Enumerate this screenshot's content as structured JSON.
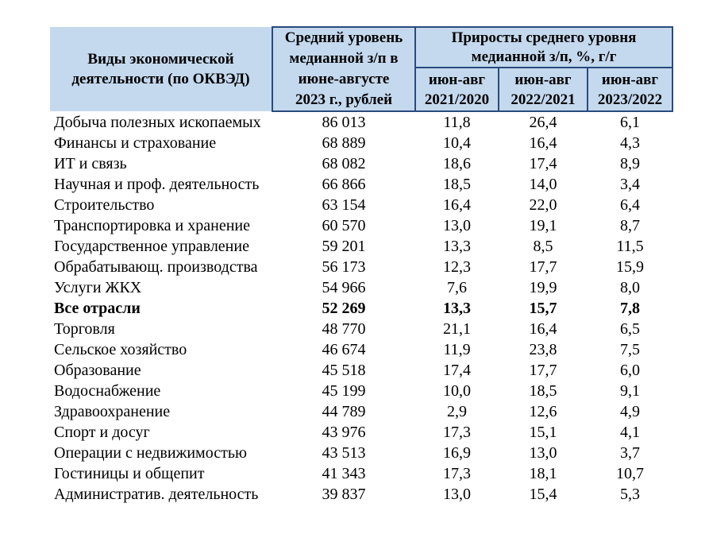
{
  "colors": {
    "header_fill": "#C4D9EE",
    "header_border": "#2A4A7C",
    "text": "#000000"
  },
  "table": {
    "header": {
      "activity": "Виды экономической деятельности (по ОКВЭД)",
      "median_salary": "Средний уровень медианной з/п в июне-августе 2023 г., рублей",
      "growth_group": "Приросты среднего уровня медианной з/п, %, г/г",
      "growth_cols": [
        "июн-авг 2021/2020",
        "июн-авг 2022/2021",
        "июн-авг 2023/2022"
      ]
    },
    "rows": [
      {
        "activity": "Добыча полезных ископаемых",
        "salary": "86 013",
        "g_2021_2020": "11,8",
        "g_2022_2021": "26,4",
        "g_2023_2022": "6,1",
        "bold": false
      },
      {
        "activity": "Финансы и страхование",
        "salary": "68 889",
        "g_2021_2020": "10,4",
        "g_2022_2021": "16,4",
        "g_2023_2022": "4,3",
        "bold": false
      },
      {
        "activity": "ИТ и связь",
        "salary": "68 082",
        "g_2021_2020": "18,6",
        "g_2022_2021": "17,4",
        "g_2023_2022": "8,9",
        "bold": false
      },
      {
        "activity": "Научная и проф. деятельность",
        "salary": "66 866",
        "g_2021_2020": "18,5",
        "g_2022_2021": "14,0",
        "g_2023_2022": "3,4",
        "bold": false
      },
      {
        "activity": "Строительство",
        "salary": "63 154",
        "g_2021_2020": "16,4",
        "g_2022_2021": "22,0",
        "g_2023_2022": "6,4",
        "bold": false
      },
      {
        "activity": "Транспортировка и хранение",
        "salary": "60 570",
        "g_2021_2020": "13,0",
        "g_2022_2021": "19,1",
        "g_2023_2022": "8,7",
        "bold": false
      },
      {
        "activity": "Государственное управление",
        "salary": "59 201",
        "g_2021_2020": "13,3",
        "g_2022_2021": "8,5",
        "g_2023_2022": "11,5",
        "bold": false
      },
      {
        "activity": "Обрабатывающ. производства",
        "salary": "56 173",
        "g_2021_2020": "12,3",
        "g_2022_2021": "17,7",
        "g_2023_2022": "15,9",
        "bold": false
      },
      {
        "activity": "Услуги ЖКХ",
        "salary": "54 966",
        "g_2021_2020": "7,6",
        "g_2022_2021": "19,9",
        "g_2023_2022": "8,0",
        "bold": false
      },
      {
        "activity": "Все отрасли",
        "salary": "52 269",
        "g_2021_2020": "13,3",
        "g_2022_2021": "15,7",
        "g_2023_2022": "7,8",
        "bold": true
      },
      {
        "activity": "Торговля",
        "salary": "48 770",
        "g_2021_2020": "21,1",
        "g_2022_2021": "16,4",
        "g_2023_2022": "6,5",
        "bold": false
      },
      {
        "activity": "Сельское хозяйство",
        "salary": "46 674",
        "g_2021_2020": "11,9",
        "g_2022_2021": "23,8",
        "g_2023_2022": "7,5",
        "bold": false
      },
      {
        "activity": "Образование",
        "salary": "45 518",
        "g_2021_2020": "17,4",
        "g_2022_2021": "17,7",
        "g_2023_2022": "6,0",
        "bold": false
      },
      {
        "activity": "Водоснабжение",
        "salary": "45 199",
        "g_2021_2020": "10,0",
        "g_2022_2021": "18,5",
        "g_2023_2022": "9,1",
        "bold": false
      },
      {
        "activity": "Здравоохранение",
        "salary": "44 789",
        "g_2021_2020": "2,9",
        "g_2022_2021": "12,6",
        "g_2023_2022": "4,9",
        "bold": false
      },
      {
        "activity": "Спорт и досуг",
        "salary": "43 976",
        "g_2021_2020": "17,3",
        "g_2022_2021": "15,1",
        "g_2023_2022": "4,1",
        "bold": false
      },
      {
        "activity": "Операции с недвижимостью",
        "salary": "43 513",
        "g_2021_2020": "16,9",
        "g_2022_2021": "13,0",
        "g_2023_2022": "3,7",
        "bold": false
      },
      {
        "activity": "Гостиницы и общепит",
        "salary": "41 343",
        "g_2021_2020": "17,3",
        "g_2022_2021": "18,1",
        "g_2023_2022": "10,7",
        "bold": false
      },
      {
        "activity": "Административ. деятельность",
        "salary": "39 837",
        "g_2021_2020": "13,0",
        "g_2022_2021": "15,4",
        "g_2023_2022": "5,3",
        "bold": false
      }
    ]
  }
}
